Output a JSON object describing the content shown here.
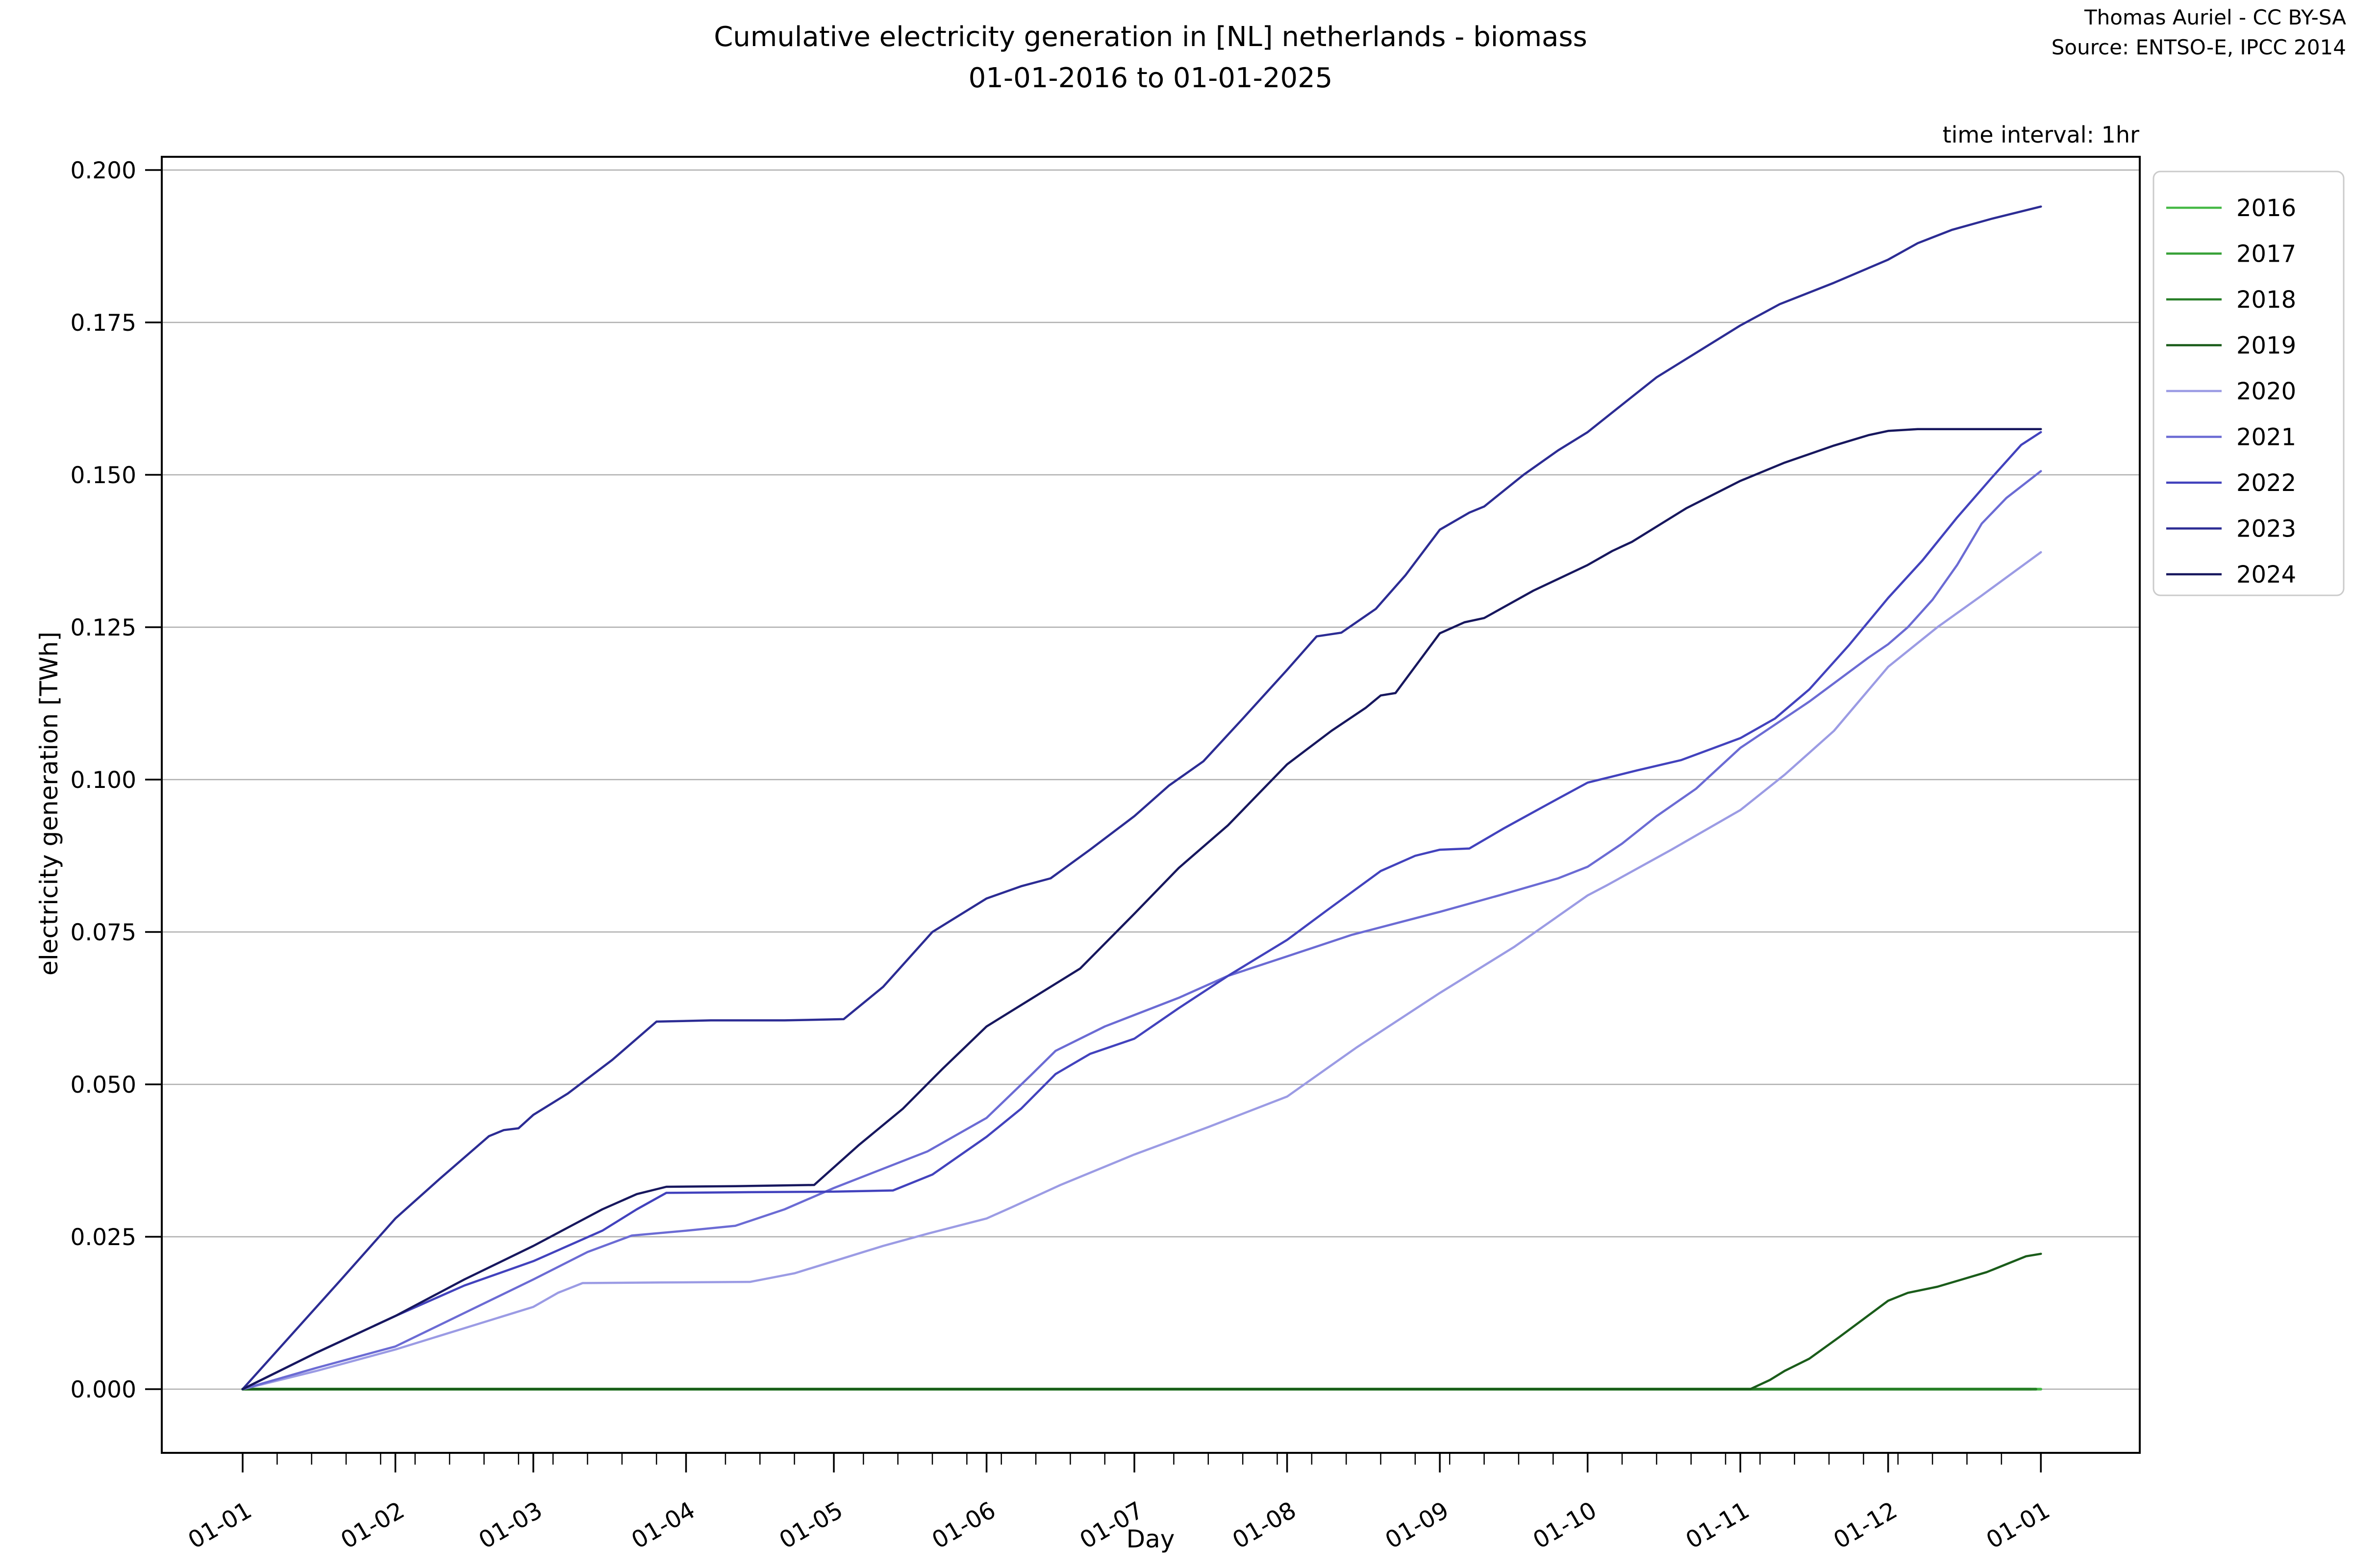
{
  "header": {
    "title_line1": "Cumulative electricity generation in [NL] netherlands - biomass",
    "title_line2": "01-01-2016 to 01-01-2025",
    "attribution_line1": "Thomas Auriel - CC BY-SA",
    "attribution_line2": "Source: ENTSO-E, IPCC 2014",
    "note": "time interval: 1hr"
  },
  "chart_data": {
    "type": "line",
    "title": "Cumulative electricity generation in [NL] netherlands - biomass 01-01-2016 to 01-01-2025",
    "xlabel": "Day",
    "ylabel": "electricity generation [TWh]",
    "grid": "horizontal",
    "legend_position": "outside-upper-right",
    "x_axis": {
      "unit": "day-of-year",
      "tick_days": [
        0,
        31,
        59,
        90,
        120,
        151,
        181,
        212,
        243,
        273,
        304,
        334,
        365
      ],
      "tick_labels": [
        "01-01",
        "01-02",
        "01-03",
        "01-04",
        "01-05",
        "01-06",
        "01-07",
        "01-08",
        "01-09",
        "01-10",
        "01-11",
        "01-12",
        "01-01"
      ],
      "minor_tick_interval_days": 7
    },
    "y_axis": {
      "ticks": [
        0.0,
        0.025,
        0.05,
        0.075,
        0.1,
        0.125,
        0.15,
        0.175,
        0.2
      ],
      "tick_labels": [
        "0.000",
        "0.025",
        "0.050",
        "0.075",
        "0.100",
        "0.125",
        "0.150",
        "0.175",
        "0.200"
      ],
      "range": [
        -0.01,
        0.204
      ]
    },
    "colors": {
      "grid": "#b0b0b0",
      "spine": "#000000",
      "legend_border": "#cbcbcb"
    },
    "series": [
      {
        "name": "2016",
        "color": "#46b946",
        "points": [
          [
            0,
            0
          ],
          [
            90,
            0
          ],
          [
            180,
            0
          ],
          [
            270,
            0
          ],
          [
            365,
            0
          ]
        ]
      },
      {
        "name": "2017",
        "color": "#36a136",
        "points": [
          [
            0,
            0
          ],
          [
            120,
            0
          ],
          [
            240,
            0
          ],
          [
            363,
            0
          ]
        ]
      },
      {
        "name": "2018",
        "color": "#287f28",
        "points": [
          [
            0,
            0
          ],
          [
            120,
            0
          ],
          [
            240,
            0
          ],
          [
            364,
            0
          ]
        ]
      },
      {
        "name": "2019",
        "color": "#1a5c1a",
        "points": [
          [
            0,
            0
          ],
          [
            150,
            0
          ],
          [
            280,
            0
          ],
          [
            306,
            0
          ],
          [
            310,
            0.0015
          ],
          [
            313,
            0.003
          ],
          [
            318,
            0.005
          ],
          [
            324,
            0.0085
          ],
          [
            329,
            0.0115
          ],
          [
            334,
            0.0145
          ],
          [
            338,
            0.0158
          ],
          [
            344,
            0.0168
          ],
          [
            349,
            0.018
          ],
          [
            354,
            0.0192
          ],
          [
            358,
            0.0205
          ],
          [
            362,
            0.0218
          ],
          [
            365,
            0.0222
          ]
        ]
      },
      {
        "name": "2020",
        "color": "#9b9be4",
        "points": [
          [
            0,
            0
          ],
          [
            15,
            0.003
          ],
          [
            31,
            0.0065
          ],
          [
            45,
            0.01
          ],
          [
            59,
            0.0135
          ],
          [
            64,
            0.0158
          ],
          [
            69,
            0.0174
          ],
          [
            85,
            0.0175
          ],
          [
            103,
            0.0176
          ],
          [
            112,
            0.019
          ],
          [
            120,
            0.021
          ],
          [
            130,
            0.0235
          ],
          [
            139,
            0.0255
          ],
          [
            151,
            0.028
          ],
          [
            156,
            0.0298
          ],
          [
            166,
            0.0335
          ],
          [
            181,
            0.0385
          ],
          [
            196,
            0.043
          ],
          [
            212,
            0.048
          ],
          [
            226,
            0.056
          ],
          [
            243,
            0.065
          ],
          [
            258,
            0.0725
          ],
          [
            273,
            0.081
          ],
          [
            277,
            0.0827
          ],
          [
            290,
            0.0885
          ],
          [
            304,
            0.095
          ],
          [
            313,
            0.1008
          ],
          [
            323,
            0.108
          ],
          [
            334,
            0.1185
          ],
          [
            344,
            0.125
          ],
          [
            353,
            0.1302
          ],
          [
            365,
            0.1373
          ]
        ]
      },
      {
        "name": "2021",
        "color": "#6b6bd4",
        "points": [
          [
            0,
            0
          ],
          [
            15,
            0.0035
          ],
          [
            31,
            0.007
          ],
          [
            45,
            0.0125
          ],
          [
            59,
            0.018
          ],
          [
            70,
            0.0225
          ],
          [
            79,
            0.0252
          ],
          [
            90,
            0.026
          ],
          [
            100,
            0.0268
          ],
          [
            110,
            0.0295
          ],
          [
            120,
            0.033
          ],
          [
            139,
            0.039
          ],
          [
            151,
            0.0445
          ],
          [
            160,
            0.0515
          ],
          [
            165,
            0.0555
          ],
          [
            175,
            0.0595
          ],
          [
            190,
            0.0642
          ],
          [
            200,
            0.0678
          ],
          [
            212,
            0.071
          ],
          [
            225,
            0.0745
          ],
          [
            243,
            0.0783
          ],
          [
            255,
            0.081
          ],
          [
            267,
            0.0838
          ],
          [
            273,
            0.0857
          ],
          [
            280,
            0.0895
          ],
          [
            287,
            0.094
          ],
          [
            295,
            0.0985
          ],
          [
            304,
            0.1052
          ],
          [
            318,
            0.1128
          ],
          [
            330,
            0.12
          ],
          [
            334,
            0.1222
          ],
          [
            338,
            0.125
          ],
          [
            343,
            0.1295
          ],
          [
            348,
            0.1352
          ],
          [
            353,
            0.142
          ],
          [
            358,
            0.1462
          ],
          [
            365,
            0.1506
          ]
        ]
      },
      {
        "name": "2022",
        "color": "#4242bd",
        "points": [
          [
            0,
            0
          ],
          [
            15,
            0.006
          ],
          [
            31,
            0.012
          ],
          [
            45,
            0.017
          ],
          [
            59,
            0.021
          ],
          [
            66,
            0.0235
          ],
          [
            73,
            0.026
          ],
          [
            80,
            0.0295
          ],
          [
            86,
            0.0322
          ],
          [
            100,
            0.0323
          ],
          [
            120,
            0.0324
          ],
          [
            132,
            0.0326
          ],
          [
            140,
            0.0352
          ],
          [
            151,
            0.0414
          ],
          [
            158,
            0.046
          ],
          [
            165,
            0.0517
          ],
          [
            172,
            0.055
          ],
          [
            181,
            0.0575
          ],
          [
            190,
            0.0625
          ],
          [
            200,
            0.0678
          ],
          [
            212,
            0.0737
          ],
          [
            220,
            0.0785
          ],
          [
            231,
            0.085
          ],
          [
            238,
            0.0875
          ],
          [
            243,
            0.0885
          ],
          [
            249,
            0.0887
          ],
          [
            256,
            0.092
          ],
          [
            265,
            0.096
          ],
          [
            273,
            0.0995
          ],
          [
            283,
            0.1015
          ],
          [
            292,
            0.1032
          ],
          [
            304,
            0.1068
          ],
          [
            311,
            0.11
          ],
          [
            318,
            0.1148
          ],
          [
            326,
            0.122
          ],
          [
            334,
            0.1298
          ],
          [
            341,
            0.136
          ],
          [
            348,
            0.143
          ],
          [
            355,
            0.1495
          ],
          [
            361,
            0.1549
          ],
          [
            365,
            0.157
          ]
        ]
      },
      {
        "name": "2023",
        "color": "#2c2c94",
        "points": [
          [
            0,
            0
          ],
          [
            10,
            0.009
          ],
          [
            20,
            0.018
          ],
          [
            31,
            0.028
          ],
          [
            40,
            0.0345
          ],
          [
            50,
            0.0415
          ],
          [
            53,
            0.0425
          ],
          [
            56,
            0.0428
          ],
          [
            59,
            0.045
          ],
          [
            63,
            0.047
          ],
          [
            66,
            0.0485
          ],
          [
            75,
            0.054
          ],
          [
            84,
            0.0603
          ],
          [
            95,
            0.0605
          ],
          [
            110,
            0.0605
          ],
          [
            122,
            0.0607
          ],
          [
            130,
            0.066
          ],
          [
            140,
            0.075
          ],
          [
            151,
            0.0805
          ],
          [
            158,
            0.0825
          ],
          [
            164,
            0.0838
          ],
          [
            172,
            0.0885
          ],
          [
            181,
            0.094
          ],
          [
            188,
            0.099
          ],
          [
            195,
            0.103
          ],
          [
            203,
            0.11
          ],
          [
            212,
            0.118
          ],
          [
            218,
            0.1235
          ],
          [
            223,
            0.1241
          ],
          [
            230,
            0.128
          ],
          [
            236,
            0.1335
          ],
          [
            243,
            0.141
          ],
          [
            249,
            0.1438
          ],
          [
            252,
            0.1448
          ],
          [
            260,
            0.15
          ],
          [
            267,
            0.154
          ],
          [
            273,
            0.157
          ],
          [
            280,
            0.1615
          ],
          [
            287,
            0.166
          ],
          [
            295,
            0.17
          ],
          [
            304,
            0.1745
          ],
          [
            312,
            0.178
          ],
          [
            323,
            0.1815
          ],
          [
            334,
            0.1853
          ],
          [
            340,
            0.188
          ],
          [
            347,
            0.1902
          ],
          [
            355,
            0.192
          ],
          [
            365,
            0.194
          ]
        ]
      },
      {
        "name": "2024",
        "color": "#17175e",
        "points": [
          [
            0,
            0
          ],
          [
            15,
            0.006
          ],
          [
            31,
            0.012
          ],
          [
            45,
            0.018
          ],
          [
            59,
            0.0235
          ],
          [
            66,
            0.0265
          ],
          [
            73,
            0.0295
          ],
          [
            80,
            0.032
          ],
          [
            86,
            0.0332
          ],
          [
            100,
            0.0333
          ],
          [
            116,
            0.0335
          ],
          [
            125,
            0.04
          ],
          [
            134,
            0.046
          ],
          [
            142,
            0.0525
          ],
          [
            151,
            0.0595
          ],
          [
            160,
            0.064
          ],
          [
            170,
            0.069
          ],
          [
            181,
            0.078
          ],
          [
            190,
            0.0855
          ],
          [
            200,
            0.0925
          ],
          [
            206,
            0.0975
          ],
          [
            212,
            0.1025
          ],
          [
            221,
            0.108
          ],
          [
            228,
            0.1118
          ],
          [
            231,
            0.1138
          ],
          [
            234,
            0.1142
          ],
          [
            243,
            0.124
          ],
          [
            248,
            0.1258
          ],
          [
            252,
            0.1265
          ],
          [
            262,
            0.131
          ],
          [
            273,
            0.1352
          ],
          [
            278,
            0.1375
          ],
          [
            282,
            0.139
          ],
          [
            293,
            0.1445
          ],
          [
            304,
            0.149
          ],
          [
            313,
            0.152
          ],
          [
            323,
            0.1548
          ],
          [
            330,
            0.1565
          ],
          [
            334,
            0.1572
          ],
          [
            340,
            0.1575
          ],
          [
            365,
            0.1575
          ]
        ]
      }
    ]
  }
}
